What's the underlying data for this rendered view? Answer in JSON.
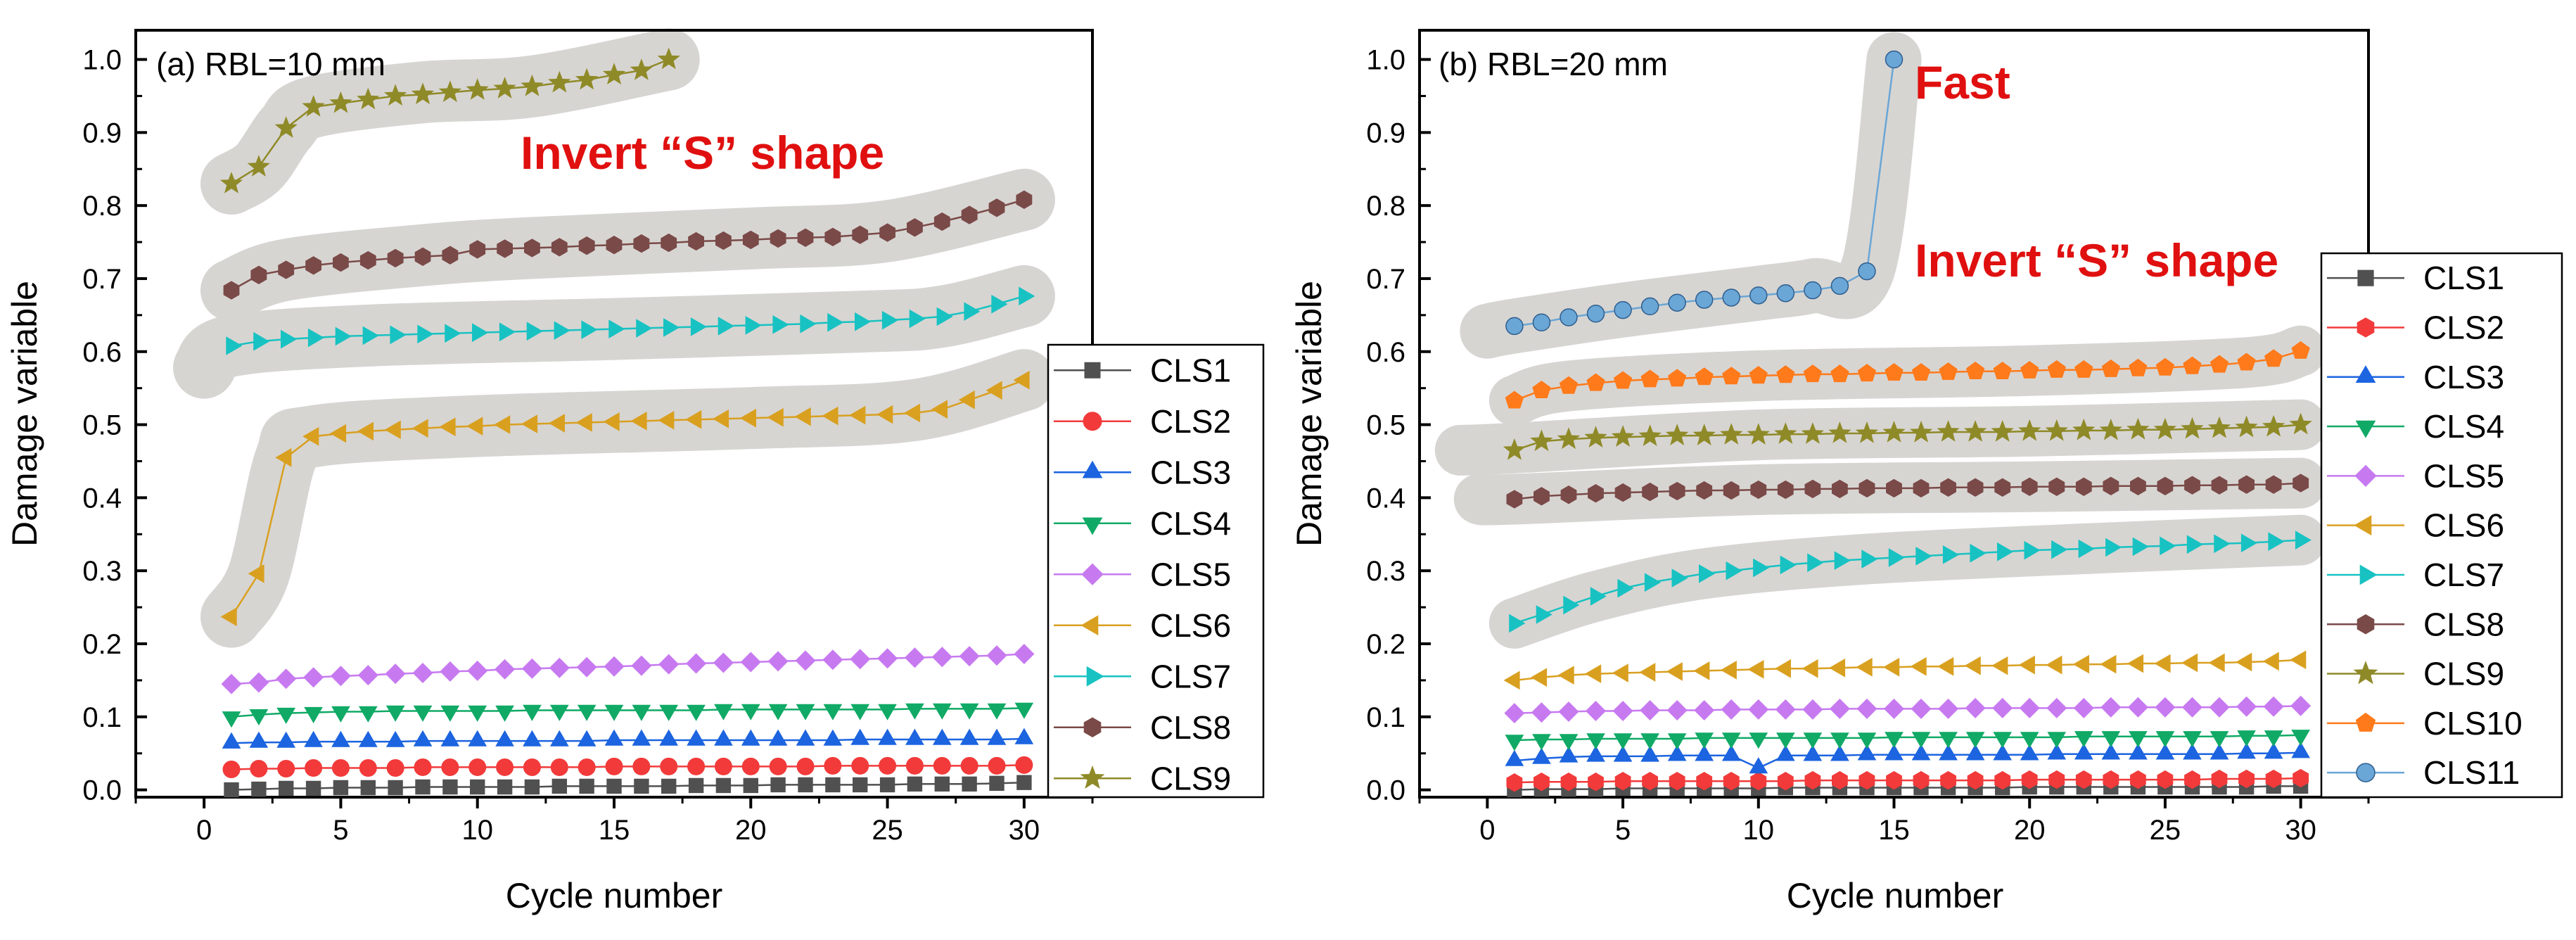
{
  "colors": {
    "CLS1": "#505050",
    "CLS2": "#f23a3a",
    "CLS3": "#1c64e0",
    "CLS4": "#10aa66",
    "CLS5": "#c77af0",
    "CLS6": "#d9a020",
    "CLS7": "#18c2c2",
    "CLS8": "#7a4a48",
    "CLS9": "#8f8a28",
    "CLS10": "#ff7a1a",
    "CLS11": "#6aa6d6",
    "annotation": "#e01010",
    "highlight": "#d7d5d2"
  },
  "chart_data": [
    {
      "type": "line",
      "panel_label": "(a) RBL=10 mm",
      "xlabel": "Cycle number",
      "ylabel": "Damage variable",
      "xlim": [
        -2.5,
        32.5
      ],
      "ylim": [
        -0.01,
        1.04
      ],
      "xticks": [
        0,
        5,
        10,
        15,
        20,
        25,
        30
      ],
      "yticks": [
        0.0,
        0.1,
        0.2,
        0.3,
        0.4,
        0.5,
        0.6,
        0.7,
        0.8,
        0.9,
        1.0
      ],
      "annotations": [
        "Invert “S” shape"
      ],
      "legend": [
        "CLS1",
        "CLS2",
        "CLS3",
        "CLS4",
        "CLS5",
        "CLS6",
        "CLS7",
        "CLS8",
        "CLS9"
      ],
      "series": [
        {
          "name": "CLS1",
          "marker": "square",
          "x_start": 1,
          "values": [
            0.0,
            0.001,
            0.002,
            0.002,
            0.003,
            0.003,
            0.003,
            0.004,
            0.004,
            0.004,
            0.004,
            0.004,
            0.005,
            0.005,
            0.005,
            0.005,
            0.005,
            0.006,
            0.006,
            0.006,
            0.007,
            0.007,
            0.007,
            0.007,
            0.007,
            0.008,
            0.008,
            0.008,
            0.009,
            0.01
          ]
        },
        {
          "name": "CLS2",
          "marker": "circle",
          "x_start": 1,
          "values": [
            0.028,
            0.029,
            0.029,
            0.03,
            0.03,
            0.03,
            0.03,
            0.031,
            0.031,
            0.031,
            0.031,
            0.031,
            0.031,
            0.031,
            0.032,
            0.032,
            0.032,
            0.032,
            0.032,
            0.032,
            0.032,
            0.032,
            0.033,
            0.033,
            0.033,
            0.033,
            0.033,
            0.033,
            0.033,
            0.034
          ]
        },
        {
          "name": "CLS3",
          "marker": "triangle-up",
          "x_start": 1,
          "values": [
            0.064,
            0.065,
            0.065,
            0.066,
            0.066,
            0.066,
            0.066,
            0.067,
            0.067,
            0.067,
            0.067,
            0.067,
            0.067,
            0.067,
            0.068,
            0.068,
            0.068,
            0.068,
            0.068,
            0.068,
            0.068,
            0.068,
            0.068,
            0.069,
            0.069,
            0.069,
            0.069,
            0.069,
            0.069,
            0.07
          ]
        },
        {
          "name": "CLS4",
          "marker": "triangle-down",
          "x_start": 1,
          "values": [
            0.1,
            0.103,
            0.105,
            0.106,
            0.107,
            0.107,
            0.108,
            0.108,
            0.108,
            0.108,
            0.108,
            0.109,
            0.109,
            0.109,
            0.109,
            0.109,
            0.109,
            0.109,
            0.11,
            0.11,
            0.11,
            0.11,
            0.11,
            0.11,
            0.11,
            0.111,
            0.111,
            0.111,
            0.111,
            0.112
          ]
        },
        {
          "name": "CLS5",
          "marker": "diamond",
          "x_start": 1,
          "values": [
            0.145,
            0.147,
            0.152,
            0.154,
            0.156,
            0.157,
            0.159,
            0.16,
            0.162,
            0.163,
            0.165,
            0.166,
            0.167,
            0.168,
            0.169,
            0.17,
            0.172,
            0.173,
            0.174,
            0.175,
            0.176,
            0.177,
            0.178,
            0.179,
            0.18,
            0.181,
            0.182,
            0.183,
            0.184,
            0.186
          ]
        },
        {
          "name": "CLS6",
          "marker": "triangle-left",
          "x_start": 1,
          "values": [
            0.237,
            0.296,
            0.455,
            0.484,
            0.488,
            0.491,
            0.493,
            0.495,
            0.497,
            0.498,
            0.5,
            0.501,
            0.502,
            0.503,
            0.504,
            0.505,
            0.506,
            0.507,
            0.508,
            0.509,
            0.51,
            0.511,
            0.512,
            0.513,
            0.514,
            0.516,
            0.521,
            0.534,
            0.547,
            0.561
          ]
        },
        {
          "name": "CLS7",
          "marker": "triangle-right",
          "x_start": 1,
          "values": [
            0.608,
            0.614,
            0.617,
            0.619,
            0.621,
            0.622,
            0.623,
            0.624,
            0.625,
            0.626,
            0.627,
            0.628,
            0.629,
            0.63,
            0.631,
            0.632,
            0.633,
            0.634,
            0.635,
            0.636,
            0.637,
            0.638,
            0.64,
            0.641,
            0.643,
            0.645,
            0.648,
            0.655,
            0.665,
            0.676
          ]
        },
        {
          "name": "CLS8",
          "marker": "hexagon",
          "x_start": 1,
          "values": [
            0.684,
            0.705,
            0.712,
            0.718,
            0.722,
            0.725,
            0.728,
            0.73,
            0.732,
            0.74,
            0.741,
            0.742,
            0.743,
            0.745,
            0.746,
            0.748,
            0.749,
            0.751,
            0.752,
            0.753,
            0.755,
            0.756,
            0.757,
            0.76,
            0.763,
            0.77,
            0.778,
            0.787,
            0.797,
            0.808
          ]
        },
        {
          "name": "CLS9",
          "marker": "star",
          "x_start": 1,
          "values": [
            0.83,
            0.853,
            0.906,
            0.935,
            0.94,
            0.945,
            0.95,
            0.952,
            0.955,
            0.958,
            0.96,
            0.963,
            0.968,
            0.972,
            0.979,
            0.985,
            1.0
          ]
        }
      ]
    },
    {
      "type": "line",
      "panel_label": "(b) RBL=20 mm",
      "xlabel": "Cycle number",
      "ylabel": "Damage variable",
      "xlim": [
        -2.5,
        32.5
      ],
      "ylim": [
        -0.01,
        1.04
      ],
      "xticks": [
        0,
        5,
        10,
        15,
        20,
        25,
        30
      ],
      "yticks": [
        0.0,
        0.1,
        0.2,
        0.3,
        0.4,
        0.5,
        0.6,
        0.7,
        0.8,
        0.9,
        1.0
      ],
      "annotations": [
        "Fast",
        "Invert “S” shape"
      ],
      "legend": [
        "CLS1",
        "CLS2",
        "CLS3",
        "CLS4",
        "CLS5",
        "CLS6",
        "CLS7",
        "CLS8",
        "CLS9",
        "CLS10",
        "CLS11"
      ],
      "series": [
        {
          "name": "CLS1",
          "marker": "square",
          "x_start": 1,
          "values": [
            0.0,
            0.001,
            0.001,
            0.001,
            0.002,
            0.002,
            0.002,
            0.002,
            0.002,
            0.002,
            0.003,
            0.003,
            0.003,
            0.003,
            0.003,
            0.003,
            0.003,
            0.003,
            0.003,
            0.004,
            0.004,
            0.004,
            0.004,
            0.004,
            0.004,
            0.004,
            0.004,
            0.004,
            0.005,
            0.005
          ]
        },
        {
          "name": "CLS2",
          "marker": "hexagon",
          "x_start": 1,
          "values": [
            0.01,
            0.011,
            0.011,
            0.011,
            0.012,
            0.012,
            0.012,
            0.012,
            0.012,
            0.012,
            0.012,
            0.013,
            0.013,
            0.013,
            0.013,
            0.013,
            0.013,
            0.013,
            0.013,
            0.014,
            0.014,
            0.014,
            0.014,
            0.014,
            0.014,
            0.014,
            0.015,
            0.015,
            0.015,
            0.016
          ]
        },
        {
          "name": "CLS3",
          "marker": "triangle-up",
          "x_start": 1,
          "values": [
            0.04,
            0.043,
            0.045,
            0.046,
            0.046,
            0.046,
            0.047,
            0.047,
            0.047,
            0.03,
            0.047,
            0.047,
            0.047,
            0.048,
            0.048,
            0.048,
            0.048,
            0.048,
            0.048,
            0.048,
            0.049,
            0.049,
            0.049,
            0.049,
            0.049,
            0.049,
            0.049,
            0.05,
            0.05,
            0.051
          ]
        },
        {
          "name": "CLS4",
          "marker": "triangle-down",
          "x_start": 1,
          "values": [
            0.068,
            0.069,
            0.069,
            0.07,
            0.07,
            0.07,
            0.07,
            0.071,
            0.071,
            0.071,
            0.071,
            0.071,
            0.071,
            0.071,
            0.072,
            0.072,
            0.072,
            0.072,
            0.072,
            0.072,
            0.072,
            0.073,
            0.073,
            0.073,
            0.073,
            0.073,
            0.073,
            0.074,
            0.074,
            0.075
          ]
        },
        {
          "name": "CLS5",
          "marker": "diamond",
          "x_start": 1,
          "values": [
            0.105,
            0.106,
            0.107,
            0.108,
            0.108,
            0.109,
            0.109,
            0.109,
            0.11,
            0.11,
            0.11,
            0.11,
            0.111,
            0.111,
            0.111,
            0.111,
            0.111,
            0.112,
            0.112,
            0.112,
            0.112,
            0.112,
            0.113,
            0.113,
            0.113,
            0.113,
            0.113,
            0.114,
            0.114,
            0.115
          ]
        },
        {
          "name": "CLS6",
          "marker": "triangle-left",
          "x_start": 1,
          "values": [
            0.15,
            0.154,
            0.157,
            0.159,
            0.16,
            0.161,
            0.162,
            0.163,
            0.164,
            0.165,
            0.166,
            0.166,
            0.167,
            0.168,
            0.168,
            0.169,
            0.169,
            0.17,
            0.17,
            0.171,
            0.171,
            0.172,
            0.172,
            0.173,
            0.173,
            0.174,
            0.174,
            0.175,
            0.176,
            0.178
          ]
        },
        {
          "name": "CLS7",
          "marker": "triangle-right",
          "x_start": 1,
          "values": [
            0.228,
            0.24,
            0.253,
            0.265,
            0.276,
            0.284,
            0.29,
            0.296,
            0.3,
            0.304,
            0.308,
            0.311,
            0.314,
            0.316,
            0.318,
            0.32,
            0.322,
            0.324,
            0.326,
            0.328,
            0.329,
            0.33,
            0.332,
            0.333,
            0.334,
            0.336,
            0.337,
            0.338,
            0.34,
            0.342
          ]
        },
        {
          "name": "CLS8",
          "marker": "hexagon",
          "x_start": 1,
          "values": [
            0.398,
            0.402,
            0.404,
            0.406,
            0.407,
            0.408,
            0.409,
            0.41,
            0.41,
            0.411,
            0.411,
            0.412,
            0.412,
            0.413,
            0.413,
            0.413,
            0.414,
            0.414,
            0.414,
            0.415,
            0.415,
            0.415,
            0.416,
            0.416,
            0.416,
            0.417,
            0.417,
            0.418,
            0.418,
            0.42
          ]
        },
        {
          "name": "CLS9",
          "marker": "star",
          "x_start": 1,
          "values": [
            0.465,
            0.477,
            0.48,
            0.482,
            0.483,
            0.484,
            0.485,
            0.485,
            0.486,
            0.486,
            0.487,
            0.487,
            0.488,
            0.488,
            0.489,
            0.489,
            0.49,
            0.49,
            0.49,
            0.491,
            0.491,
            0.492,
            0.492,
            0.493,
            0.493,
            0.494,
            0.495,
            0.496,
            0.497,
            0.5
          ]
        },
        {
          "name": "CLS10",
          "marker": "pentagon",
          "x_start": 1,
          "values": [
            0.533,
            0.547,
            0.553,
            0.557,
            0.56,
            0.562,
            0.563,
            0.565,
            0.566,
            0.567,
            0.568,
            0.569,
            0.569,
            0.57,
            0.571,
            0.571,
            0.572,
            0.573,
            0.573,
            0.574,
            0.575,
            0.575,
            0.576,
            0.577,
            0.578,
            0.58,
            0.582,
            0.585,
            0.59,
            0.601
          ]
        },
        {
          "name": "CLS11",
          "marker": "circle",
          "x_start": 1,
          "values": [
            0.635,
            0.64,
            0.647,
            0.652,
            0.657,
            0.662,
            0.667,
            0.671,
            0.674,
            0.677,
            0.68,
            0.684,
            0.69,
            0.71,
            1.0
          ]
        }
      ]
    }
  ]
}
